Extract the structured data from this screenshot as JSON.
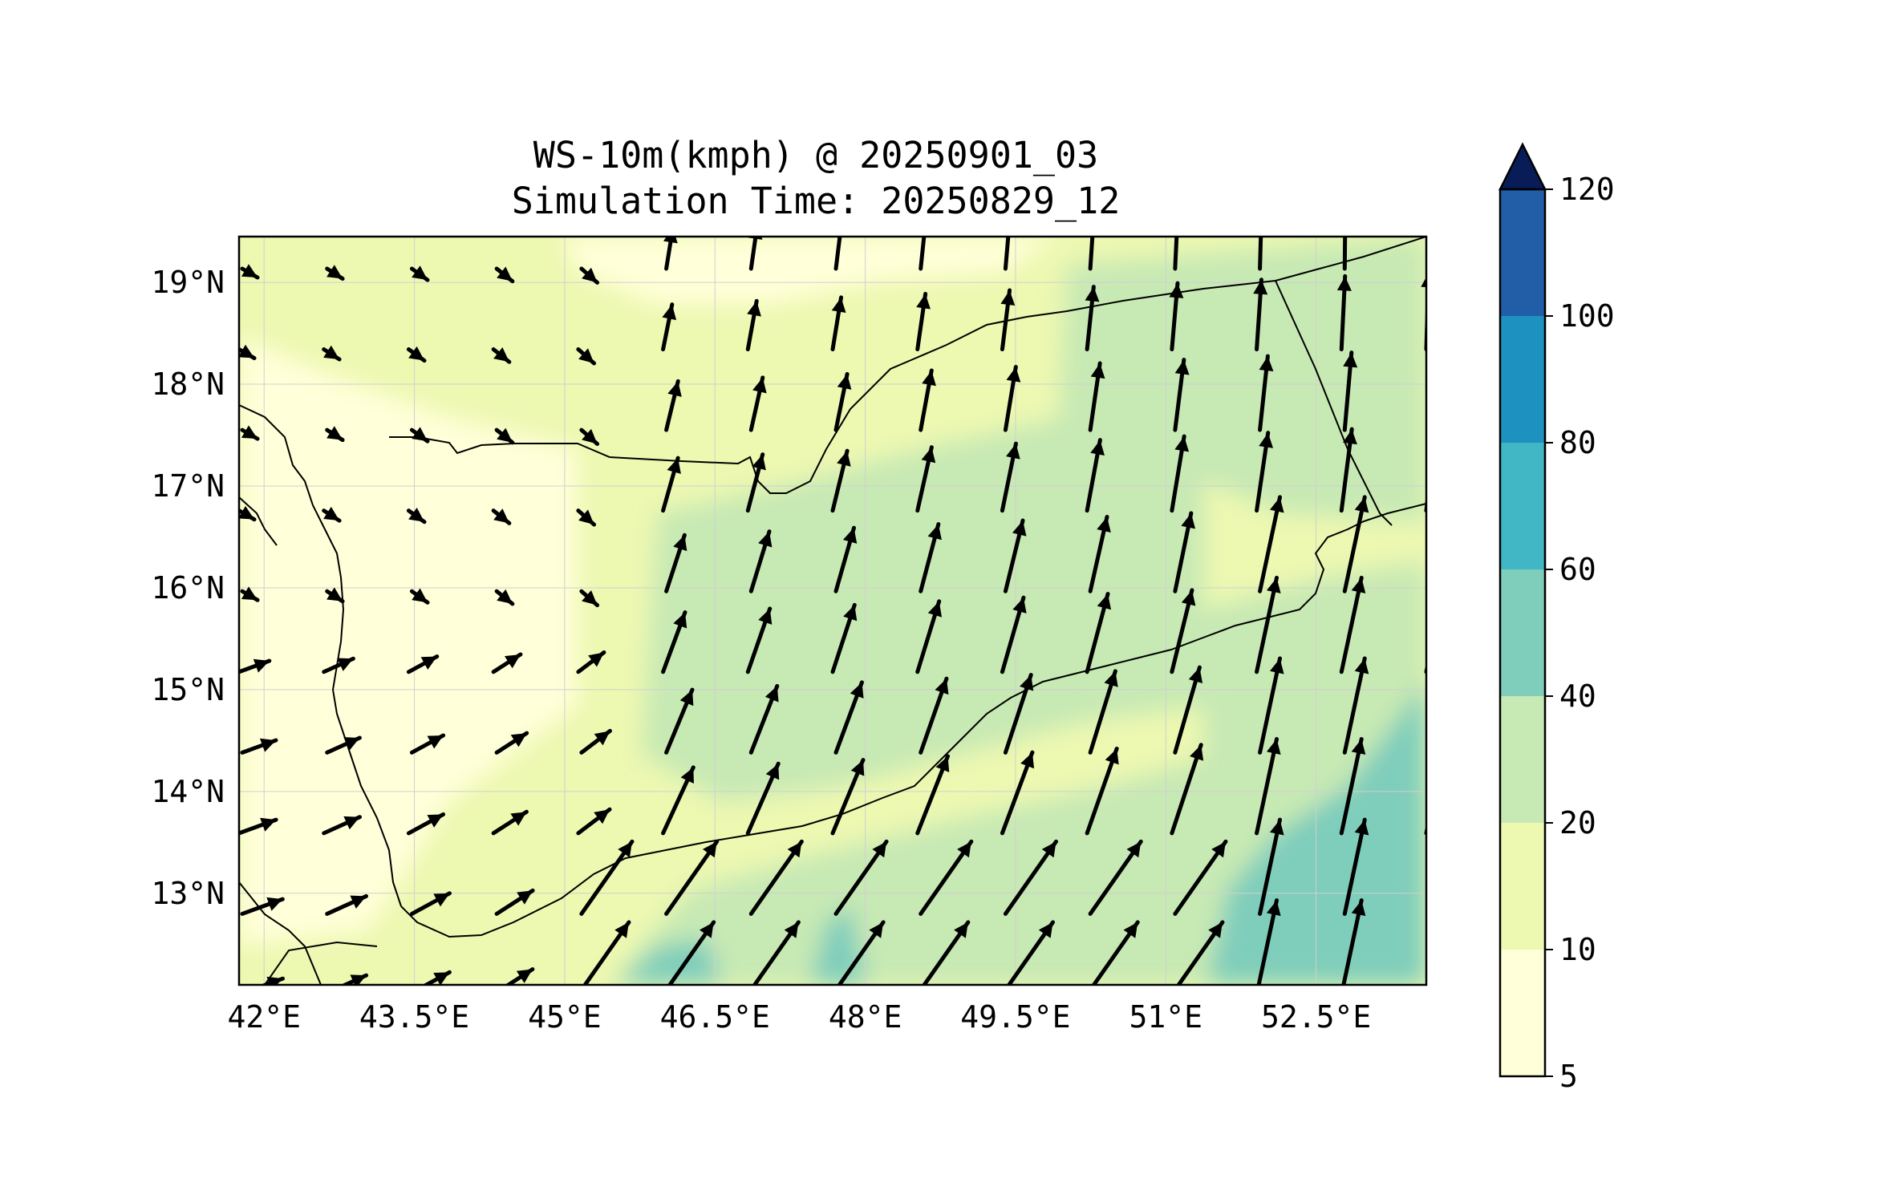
{
  "title_line1": "WS-10m(kmph) @ 20250901_03",
  "title_line2": "Simulation Time: 20250829_12",
  "map": {
    "lon_range": [
      41.75,
      53.6
    ],
    "lat_range": [
      12.1,
      19.45
    ],
    "lon_ticks": [
      {
        "value": 42.0,
        "label": "42°E"
      },
      {
        "value": 43.5,
        "label": "43.5°E"
      },
      {
        "value": 45.0,
        "label": "45°E"
      },
      {
        "value": 46.5,
        "label": "46.5°E"
      },
      {
        "value": 48.0,
        "label": "48°E"
      },
      {
        "value": 49.5,
        "label": "49.5°E"
      },
      {
        "value": 51.0,
        "label": "51°E"
      },
      {
        "value": 52.5,
        "label": "52.5°E"
      }
    ],
    "lat_ticks": [
      {
        "value": 19,
        "label": "19°N"
      },
      {
        "value": 18,
        "label": "18°N"
      },
      {
        "value": 17,
        "label": "17°N"
      },
      {
        "value": 16,
        "label": "16°N"
      },
      {
        "value": 15,
        "label": "15°N"
      },
      {
        "value": 14,
        "label": "14°N"
      },
      {
        "value": 13,
        "label": "13°N"
      }
    ],
    "grid": true
  },
  "colorbar": {
    "levels": [
      5,
      10,
      20,
      40,
      60,
      80,
      100,
      120
    ],
    "labels": [
      "5",
      "10",
      "20",
      "40",
      "60",
      "80",
      "100",
      "120"
    ],
    "colors": [
      "#ffffd9",
      "#edf8b1",
      "#c7e9b4",
      "#7fcdbb",
      "#41b6c4",
      "#1d91c0",
      "#225ea8",
      "#253494"
    ],
    "extend_color": "#081d58",
    "extend": "max"
  },
  "colors": {
    "land_outline": "#000000",
    "arrow": "#000000",
    "grid": "#d0d0d0"
  }
}
